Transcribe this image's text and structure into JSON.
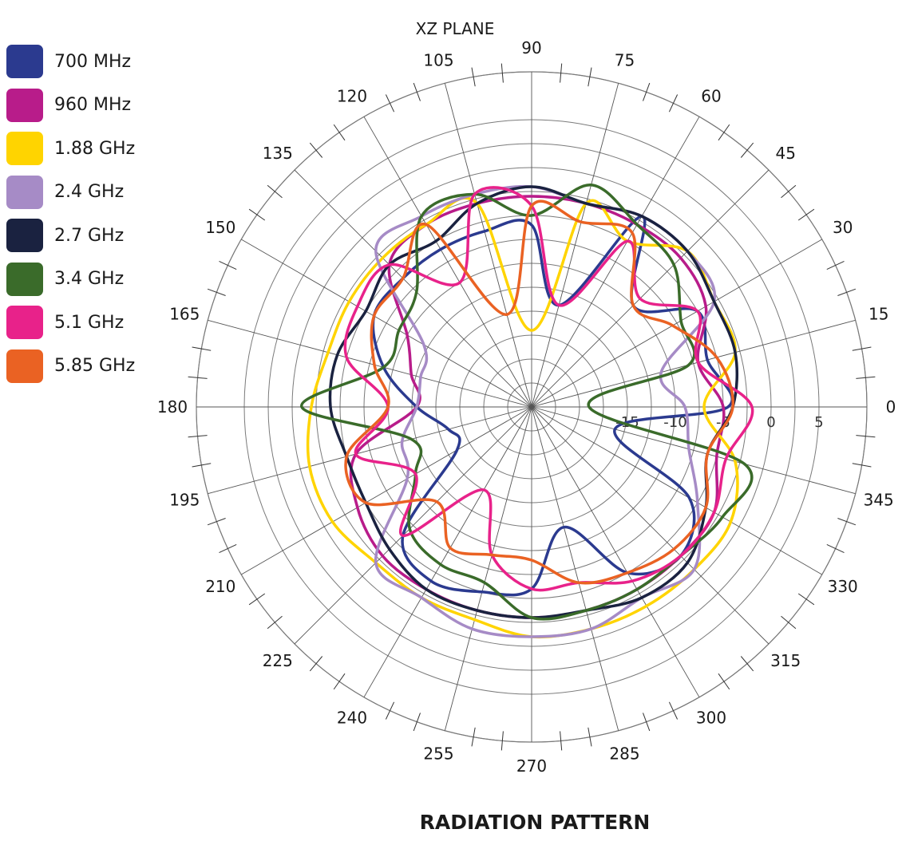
{
  "chart_data": {
    "type": "polar-line",
    "title": "XZ PLANE",
    "footer": "RADIATION PATTERN",
    "r_ticks": [
      -15,
      -10,
      -5,
      0,
      5
    ],
    "rlim": [
      -25,
      10
    ],
    "angle_ticks": [
      0,
      15,
      30,
      45,
      60,
      75,
      90,
      105,
      120,
      135,
      150,
      165,
      180,
      195,
      210,
      225,
      240,
      255,
      270,
      285,
      300,
      315,
      330,
      345
    ],
    "theta": [
      0,
      15,
      30,
      45,
      60,
      75,
      90,
      105,
      120,
      135,
      150,
      165,
      180,
      195,
      210,
      225,
      240,
      255,
      270,
      285,
      300,
      315,
      330,
      345
    ],
    "series": [
      {
        "name": "700 MHz",
        "color": "#2b3a8f",
        "values": [
          -4.5,
          -6,
          -5,
          -10,
          -2,
          -14,
          -6,
          -6,
          -6,
          -6,
          -6,
          -9,
          -13,
          -16,
          -16,
          -6,
          -4,
          -5,
          -6,
          -12,
          -5,
          -3,
          -6,
          -16
        ]
      },
      {
        "name": "960 MHz",
        "color": "#b81c8a",
        "values": [
          -5,
          -7,
          -4,
          -3,
          -3,
          -3,
          -3,
          -3,
          -3,
          -4,
          -10,
          -12,
          -13,
          -6,
          -4,
          -3,
          -3,
          -3,
          -3,
          -3,
          -3,
          -3,
          -3,
          -5
        ]
      },
      {
        "name": "1.88 GHz",
        "color": "#ffd400",
        "values": [
          -7,
          -3,
          -3,
          -2,
          -5,
          -3,
          -17,
          -3,
          -3,
          -3,
          -3,
          -3,
          -2,
          -1,
          -1,
          -2,
          -2,
          -2,
          -1,
          -1,
          -1,
          -1,
          -1,
          -3
        ]
      },
      {
        "name": "2.4 GHz",
        "color": "#a68bc6",
        "values": [
          -9,
          -11,
          -3,
          -2,
          -2,
          -3,
          -2,
          -2,
          -2,
          -2,
          -12,
          -13,
          -13,
          -11,
          -10,
          -2,
          -2,
          -1,
          -1,
          -1,
          -2,
          -1,
          -5,
          -8
        ]
      },
      {
        "name": "2.7 GHz",
        "color": "#1a2240",
        "values": [
          -4,
          -3,
          -3,
          -2,
          -2,
          -3,
          -2,
          -3,
          -5,
          -4,
          -5,
          -4,
          -4,
          -5,
          -5,
          -4,
          -3,
          -3,
          -3,
          -3,
          -2,
          -2,
          -4,
          -6
        ]
      },
      {
        "name": "3.4 GHz",
        "color": "#3a6b2a",
        "values": [
          -19,
          -8,
          -7,
          -4,
          -3,
          -1,
          -5,
          -2,
          -2,
          -8,
          -9,
          -9,
          -1,
          -12,
          -11,
          -7,
          -6,
          -6,
          -3,
          -3,
          -3,
          -3,
          -2,
          -2
        ]
      },
      {
        "name": "5.1 GHz",
        "color": "#e8228a",
        "values": [
          -2,
          -7,
          -5,
          -9,
          -5,
          -14,
          -4,
          -2,
          -10,
          -4,
          -4,
          -5,
          -10,
          -6,
          -11,
          -6,
          -15,
          -9,
          -6,
          -6,
          -4,
          -3,
          -3,
          -4
        ]
      },
      {
        "name": "5.85 GHz",
        "color": "#ea6223",
        "values": [
          -4,
          -5,
          -8,
          -10,
          -4,
          -5,
          -4,
          -15,
          -3,
          -6,
          -6,
          -8,
          -10,
          -5,
          -5,
          -11,
          -8,
          -9,
          -9,
          -6,
          -5,
          -4,
          -4,
          -6
        ]
      }
    ]
  }
}
